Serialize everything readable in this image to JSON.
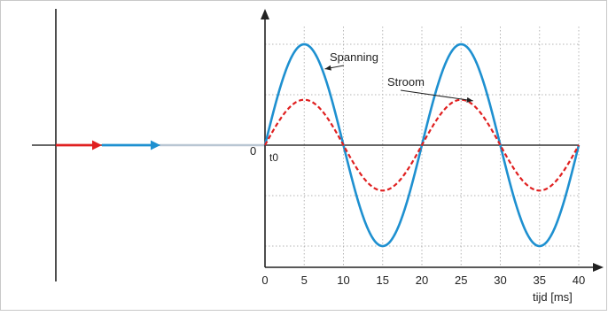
{
  "chart_data": {
    "type": "line",
    "x": [
      0,
      5,
      10,
      15,
      20,
      25,
      30,
      35,
      40
    ],
    "x_ticks": [
      "0",
      "5",
      "10",
      "15",
      "20",
      "25",
      "30",
      "35",
      "40"
    ],
    "xlabel": "tijd [ms]",
    "xlim": [
      0,
      40
    ],
    "ylim": [
      -1.25,
      1.25
    ],
    "grid": true,
    "origin_label": "0",
    "t0_label": "t0",
    "series": [
      {
        "name": "Spanning",
        "amplitude": 1.0,
        "period_ms": 20,
        "phase_deg": 0,
        "color": "#1e90d0",
        "style": "solid"
      },
      {
        "name": "Stroom",
        "amplitude": 0.45,
        "period_ms": 20,
        "phase_deg": 0,
        "color": "#e02020",
        "style": "dashed"
      }
    ],
    "annotations": [
      {
        "text": "Spanning",
        "points_to": "Spanning"
      },
      {
        "text": "Stroom",
        "points_to": "Stroom"
      }
    ],
    "phasors": [
      {
        "name": "stroom-phasor",
        "color": "#e02020"
      },
      {
        "name": "spanning-phasor",
        "color": "#1e90d0"
      }
    ]
  }
}
